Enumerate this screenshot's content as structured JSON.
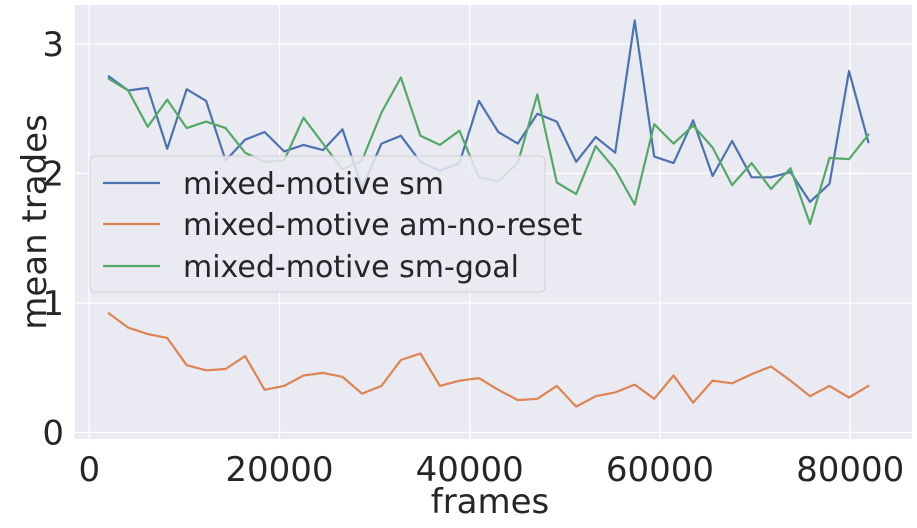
{
  "chart_data": {
    "type": "line",
    "xlabel": "frames",
    "ylabel": "mean trades",
    "xlim": [
      -1500,
      86500
    ],
    "ylim": [
      -0.05,
      3.3
    ],
    "xticks": [
      0,
      20000,
      40000,
      60000,
      80000
    ],
    "xtick_labels": [
      "0",
      "20000",
      "40000",
      "60000",
      "80000"
    ],
    "yticks": [
      0,
      1,
      2,
      3
    ],
    "ytick_labels": [
      "0",
      "1",
      "2",
      "3"
    ],
    "grid": true,
    "legend_position": "center-left",
    "x": [
      2048,
      4096,
      6144,
      8192,
      10240,
      12288,
      14336,
      16384,
      18432,
      20480,
      22528,
      24576,
      26624,
      28672,
      30720,
      32768,
      34816,
      36864,
      38912,
      40960,
      43008,
      45056,
      47104,
      49152,
      51200,
      53248,
      55296,
      57344,
      59392,
      61440,
      63488,
      65536,
      67584,
      69632,
      71680,
      73728,
      75776,
      77824,
      79872,
      81920
    ],
    "series": [
      {
        "name": "mixed-motive sm",
        "color": "#4c72b0",
        "values": [
          2.75,
          2.64,
          2.66,
          2.19,
          2.65,
          2.56,
          2.1,
          2.26,
          2.32,
          2.17,
          2.22,
          2.18,
          2.34,
          1.89,
          2.23,
          2.29,
          2.09,
          2.02,
          2.08,
          2.56,
          2.32,
          2.23,
          2.46,
          2.4,
          2.09,
          2.28,
          2.16,
          3.18,
          2.13,
          2.08,
          2.41,
          1.98,
          2.25,
          1.97,
          1.97,
          2.01,
          1.78,
          1.92,
          2.79,
          2.24
        ]
      },
      {
        "name": "mixed-motive am-no-reset",
        "color": "#dd8452",
        "values": [
          0.92,
          0.81,
          0.76,
          0.73,
          0.52,
          0.48,
          0.49,
          0.59,
          0.33,
          0.36,
          0.44,
          0.46,
          0.43,
          0.3,
          0.36,
          0.56,
          0.61,
          0.36,
          0.4,
          0.42,
          0.33,
          0.25,
          0.26,
          0.36,
          0.2,
          0.28,
          0.31,
          0.37,
          0.26,
          0.44,
          0.23,
          0.4,
          0.38,
          0.45,
          0.51,
          0.4,
          0.28,
          0.36,
          0.27,
          0.36
        ]
      },
      {
        "name": "mixed-motive sm-goal",
        "color": "#55a868",
        "values": [
          2.73,
          2.64,
          2.36,
          2.57,
          2.35,
          2.4,
          2.35,
          2.16,
          2.09,
          2.1,
          2.43,
          2.23,
          2.03,
          2.1,
          2.47,
          2.74,
          2.29,
          2.22,
          2.33,
          1.97,
          1.94,
          2.08,
          2.61,
          1.93,
          1.84,
          2.21,
          2.03,
          1.76,
          2.38,
          2.23,
          2.37,
          2.2,
          1.91,
          2.08,
          1.88,
          2.04,
          1.61,
          2.12,
          2.11,
          2.3
        ]
      }
    ]
  }
}
